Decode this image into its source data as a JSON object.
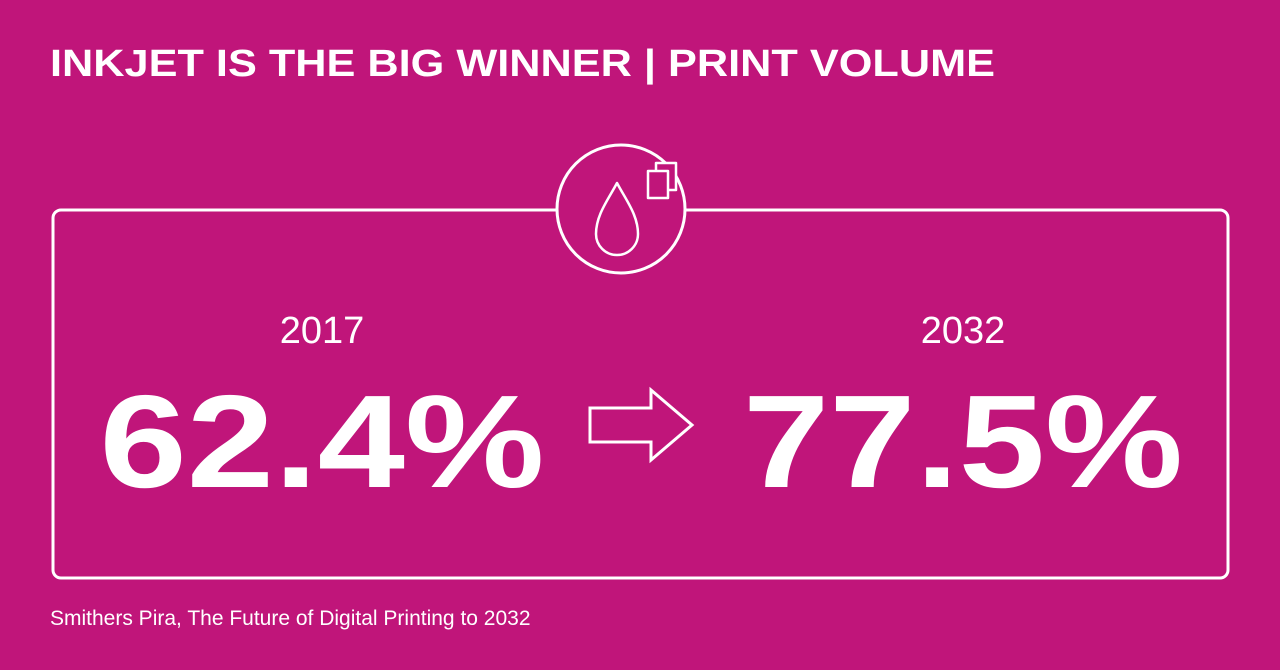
{
  "header": {
    "title": "INKJET IS THE BIG WINNER | PRINT VOLUME"
  },
  "comparison": {
    "before": {
      "year": "2017",
      "value": "62.4%"
    },
    "after": {
      "year": "2032",
      "value": "77.5%"
    }
  },
  "footer": {
    "source": "Smithers Pira, The Future of Digital Printing to 2032"
  }
}
